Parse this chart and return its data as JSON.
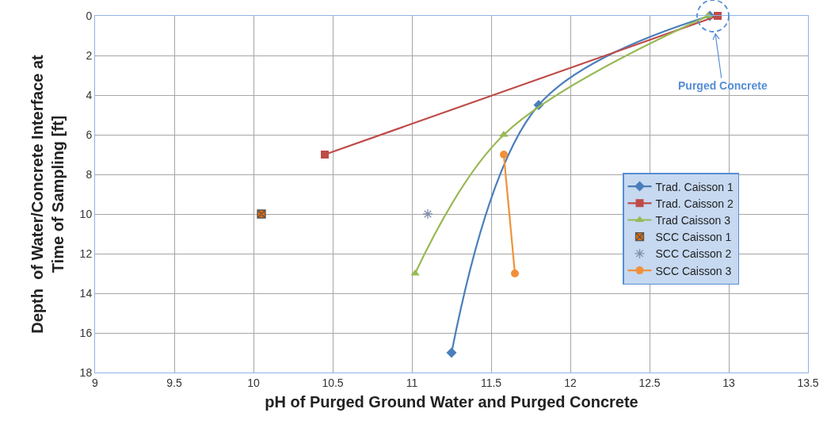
{
  "chart_data": {
    "type": "line",
    "xlabel": "pH of Purged Ground Water and Purged Concrete",
    "ylabel": "Depth  of Water/Concrete Interface at\nTime of Sampling [ft]",
    "xlim": [
      9,
      13.5
    ],
    "xticks": [
      9,
      9.5,
      10,
      10.5,
      11,
      11.5,
      12,
      12.5,
      13,
      13.5
    ],
    "ylim": [
      18,
      0
    ],
    "yticks": [
      0,
      2,
      4,
      6,
      8,
      10,
      12,
      14,
      16,
      18
    ],
    "grid": true,
    "legend": "right",
    "annotations": [
      {
        "text": "Purged Concrete",
        "x": 12.9,
        "y": 0
      }
    ],
    "series": [
      {
        "name": "Trad. Caisson 1",
        "color": "#4a7ebb",
        "marker": "diamond",
        "x": [
          11.25,
          11.8,
          12.88
        ],
        "values": [
          17,
          4.5,
          0
        ]
      },
      {
        "name": "Trad. Caisson 2",
        "color": "#be4b48",
        "marker": "square",
        "x": [
          10.45,
          12.93
        ],
        "values": [
          7,
          0
        ]
      },
      {
        "name": "Trad Caisson 3",
        "color": "#98b954",
        "marker": "triangle",
        "x": [
          11.02,
          11.58,
          12.87
        ],
        "values": [
          13,
          6,
          0
        ]
      },
      {
        "name": "SCC Caisson 1",
        "type": "scatter",
        "color": "#e46c0a",
        "marker": "cross",
        "x": [
          10.05
        ],
        "values": [
          10
        ]
      },
      {
        "name": "SCC Caisson 2",
        "type": "scatter",
        "color": "#7f8fa9",
        "marker": "cross",
        "x": [
          11.1
        ],
        "values": [
          10
        ]
      },
      {
        "name": "SCC Caisson 3",
        "color": "#f0913a",
        "marker": "circle",
        "x": [
          11.58,
          11.65
        ],
        "values": [
          7,
          13
        ]
      }
    ]
  }
}
